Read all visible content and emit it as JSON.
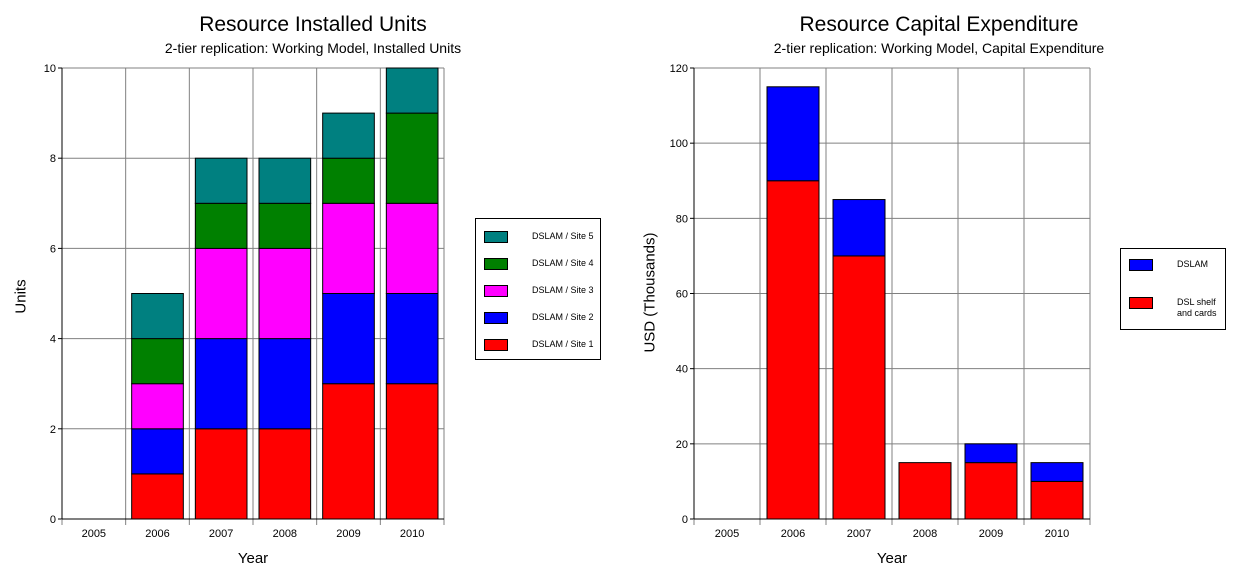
{
  "chart_data": [
    {
      "type": "bar",
      "stacked": true,
      "title": "Resource Installed Units",
      "subtitle": "2-tier replication: Working Model, Installed Units",
      "xlabel": "Year",
      "ylabel": "Units",
      "categories": [
        "2005",
        "2006",
        "2007",
        "2008",
        "2009",
        "2010"
      ],
      "ylim": [
        0,
        10
      ],
      "yticks": [
        0,
        2,
        4,
        6,
        8,
        10
      ],
      "grid": true,
      "legend_position": "right",
      "series": [
        {
          "name": "DSLAM / Site 1",
          "color": "#ff0000",
          "values": [
            0,
            1,
            2,
            2,
            3,
            3
          ]
        },
        {
          "name": "DSLAM / Site 2",
          "color": "#0000ff",
          "values": [
            0,
            1,
            2,
            2,
            2,
            2
          ]
        },
        {
          "name": "DSLAM / Site 3",
          "color": "#ff00ff",
          "values": [
            0,
            1,
            2,
            2,
            2,
            2
          ]
        },
        {
          "name": "DSLAM / Site 4",
          "color": "#008000",
          "values": [
            0,
            1,
            1,
            1,
            1,
            2
          ]
        },
        {
          "name": "DSLAM / Site 5",
          "color": "#008080",
          "values": [
            0,
            1,
            1,
            1,
            1,
            1
          ]
        }
      ]
    },
    {
      "type": "bar",
      "stacked": true,
      "title": "Resource Capital Expenditure",
      "subtitle": "2-tier replication: Working Model, Capital Expenditure",
      "xlabel": "Year",
      "ylabel": "USD  (Thousands)",
      "categories": [
        "2005",
        "2006",
        "2007",
        "2008",
        "2009",
        "2010"
      ],
      "ylim": [
        0,
        120
      ],
      "yticks": [
        0,
        20,
        40,
        60,
        80,
        100,
        120
      ],
      "grid": true,
      "legend_position": "right",
      "series": [
        {
          "name": "DSL shelf\nand cards",
          "color": "#ff0000",
          "values": [
            0,
            90,
            70,
            15,
            15,
            10
          ]
        },
        {
          "name": "DSLAM",
          "color": "#0000ff",
          "values": [
            0,
            25,
            15,
            0,
            5,
            5
          ]
        }
      ]
    }
  ]
}
